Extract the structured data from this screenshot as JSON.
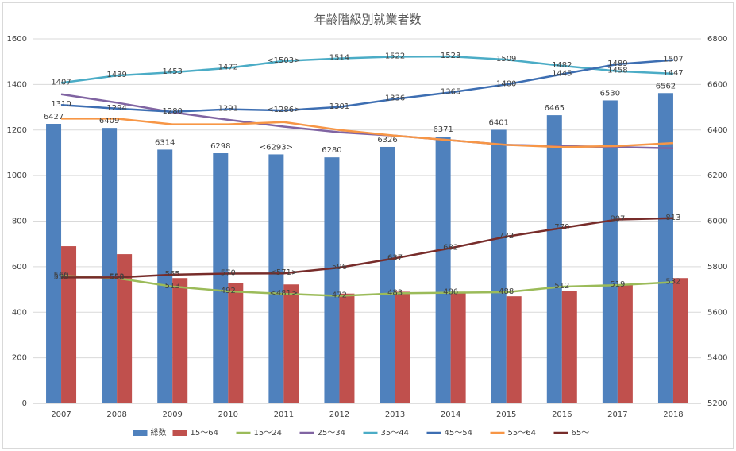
{
  "chart_data": {
    "type": "combo",
    "title": "年齢階級別就業者数",
    "categories": [
      "2007",
      "2008",
      "2009",
      "2010",
      "2011",
      "2012",
      "2013",
      "2014",
      "2015",
      "2016",
      "2017",
      "2018"
    ],
    "ylim": [
      0,
      1600
    ],
    "yticks": [
      0,
      200,
      400,
      600,
      800,
      1000,
      1200,
      1400,
      1600
    ],
    "y2lim": [
      5200,
      6800
    ],
    "y2ticks": [
      5200,
      5400,
      5600,
      5800,
      6000,
      6200,
      6400,
      6600,
      6800
    ],
    "grid": true,
    "legend": "bottom",
    "series": [
      {
        "name": "総数",
        "type": "bar",
        "axis": "y2",
        "color": "#4f81bd",
        "values": [
          6427,
          6409,
          6314,
          6298,
          6293,
          6280,
          6326,
          6371,
          6401,
          6465,
          6530,
          6562
        ],
        "value_labels": [
          "6427",
          "6409",
          "6314",
          "6298",
          "<6293>",
          "6280",
          "6326",
          "6371",
          "6401",
          "6465",
          "6530",
          "6562"
        ]
      },
      {
        "name": "15〜64",
        "type": "bar",
        "color": "#c0504d",
        "values": [
          690,
          655,
          550,
          527,
          522,
          482,
          490,
          490,
          470,
          495,
          520,
          550
        ]
      },
      {
        "name": "15〜24",
        "type": "line",
        "color": "#9bbb59",
        "values": [
          560,
          550,
          513,
          492,
          481,
          472,
          483,
          486,
          488,
          512,
          519,
          532
        ],
        "value_labels": [
          "560",
          "550",
          "513",
          "492",
          "<481>",
          "472",
          "483",
          "486",
          "488",
          "512",
          "519",
          "532"
        ]
      },
      {
        "name": "25〜34",
        "type": "line",
        "color": "#8064a2",
        "values": [
          1357,
          1320,
          1278,
          1245,
          1215,
          1190,
          1175,
          1155,
          1135,
          1130,
          1125,
          1120
        ]
      },
      {
        "name": "35〜44",
        "type": "line",
        "color": "#4bacc6",
        "values": [
          1407,
          1439,
          1453,
          1472,
          1503,
          1514,
          1522,
          1523,
          1509,
          1482,
          1458,
          1447
        ],
        "value_labels": [
          "1407",
          "1439",
          "1453",
          "1472",
          "<1503>",
          "1514",
          "1522",
          "1523",
          "1509",
          "1482",
          "1458",
          "1447"
        ]
      },
      {
        "name": "45〜54",
        "type": "line",
        "color": "#3d6eb2",
        "values": [
          1310,
          1294,
          1280,
          1291,
          1286,
          1301,
          1336,
          1365,
          1400,
          1445,
          1489,
          1507
        ],
        "value_labels": [
          "1310",
          "1294",
          "1280",
          "1291",
          "<1286>",
          "1301",
          "1336",
          "1365",
          "1400",
          "1445",
          "1489",
          "1507"
        ]
      },
      {
        "name": "55〜64",
        "type": "line",
        "color": "#f79646",
        "values": [
          1250,
          1250,
          1225,
          1225,
          1235,
          1200,
          1175,
          1155,
          1135,
          1125,
          1130,
          1143
        ]
      },
      {
        "name": "65〜",
        "type": "line",
        "color": "#772c2a",
        "values": [
          553,
          553,
          565,
          570,
          571,
          596,
          637,
          682,
          732,
          770,
          807,
          813
        ],
        "value_labels": [
          "553",
          "553",
          "565",
          "570",
          "<571>",
          "596",
          "637",
          "682",
          "732",
          "770",
          "807",
          "813"
        ]
      }
    ]
  }
}
